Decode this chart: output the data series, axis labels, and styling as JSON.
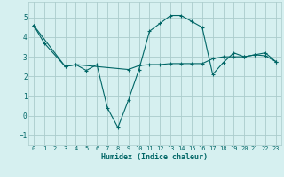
{
  "xlabel": "Humidex (Indice chaleur)",
  "ylabel": "",
  "bg_color": "#d6f0f0",
  "line_color": "#006666",
  "grid_color": "#aacccc",
  "xlim": [
    -0.5,
    23.5
  ],
  "ylim": [
    -1.5,
    5.8
  ],
  "yticks": [
    -1,
    0,
    1,
    2,
    3,
    4,
    5
  ],
  "xticks": [
    0,
    1,
    2,
    3,
    4,
    5,
    6,
    7,
    8,
    9,
    10,
    11,
    12,
    13,
    14,
    15,
    16,
    17,
    18,
    19,
    20,
    21,
    22,
    23
  ],
  "curve1_x": [
    0,
    1,
    3,
    4,
    5,
    6,
    7,
    8,
    9,
    10,
    11,
    12,
    13,
    14,
    15,
    16,
    17,
    18,
    19,
    20,
    21,
    22,
    23
  ],
  "curve1_y": [
    4.6,
    3.7,
    2.5,
    2.6,
    2.3,
    2.6,
    0.4,
    -0.6,
    0.8,
    2.35,
    4.3,
    4.7,
    5.1,
    5.1,
    4.8,
    4.5,
    2.1,
    2.7,
    3.2,
    3.0,
    3.1,
    3.2,
    2.75
  ],
  "curve2_x": [
    0,
    3,
    4,
    9,
    10,
    11,
    12,
    13,
    14,
    15,
    16,
    17,
    18,
    19,
    20,
    21,
    22,
    23
  ],
  "curve2_y": [
    4.6,
    2.5,
    2.6,
    2.35,
    2.55,
    2.6,
    2.6,
    2.65,
    2.65,
    2.65,
    2.65,
    2.9,
    3.0,
    3.0,
    3.0,
    3.1,
    3.05,
    2.75
  ]
}
